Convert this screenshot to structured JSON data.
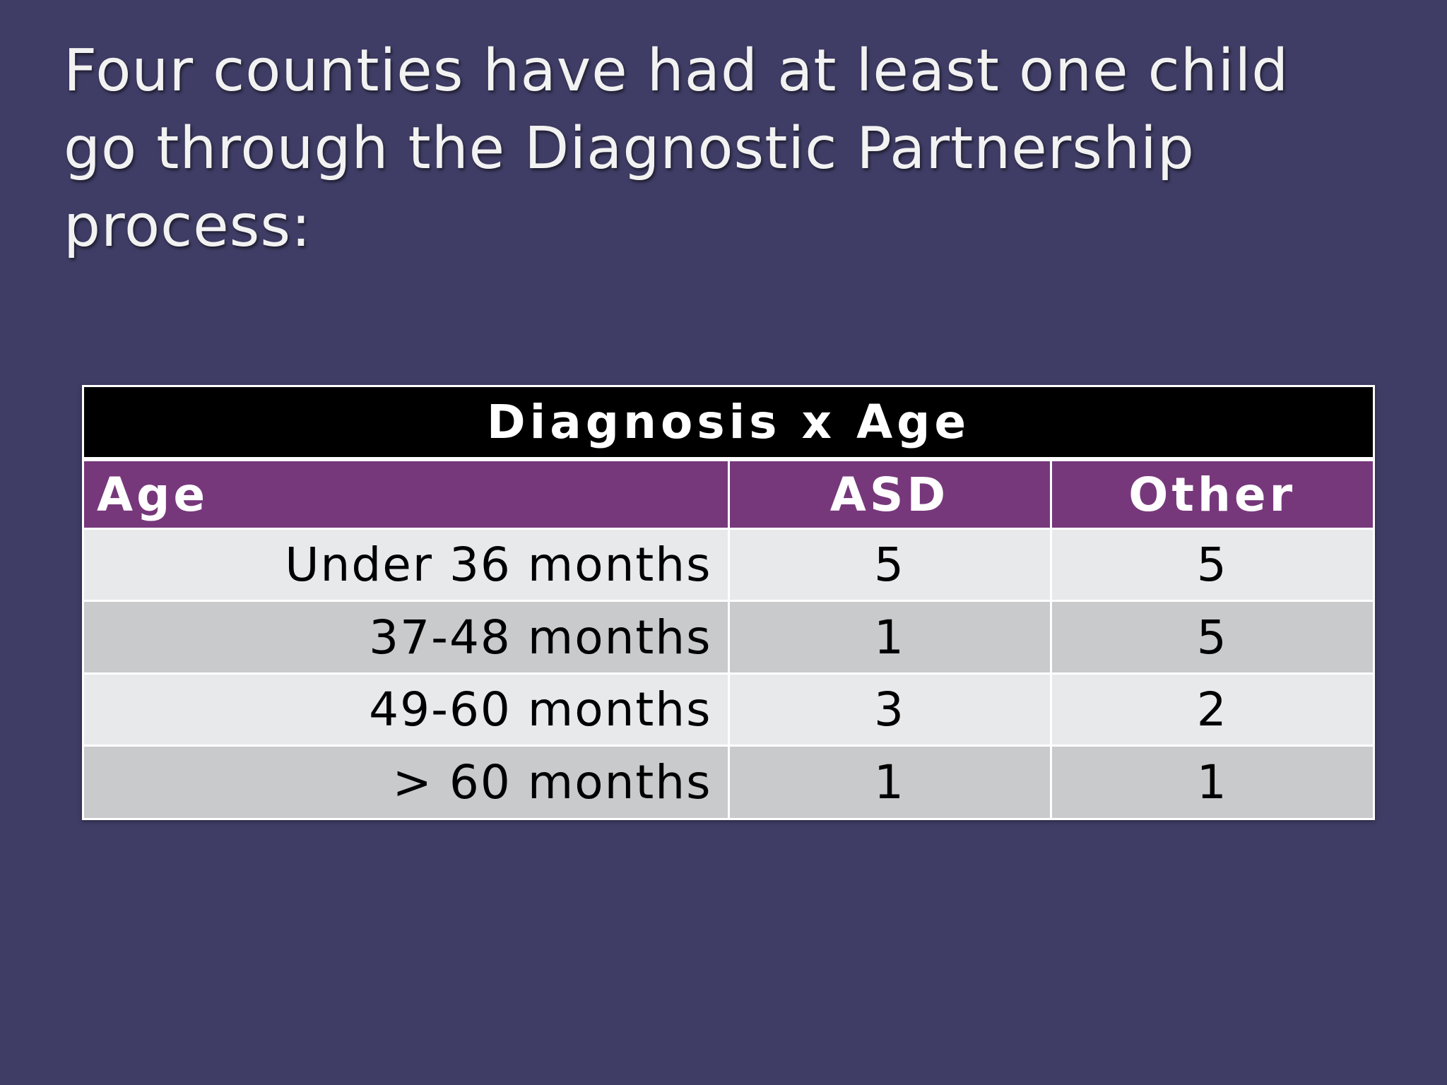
{
  "slide": {
    "title": "Four counties have had at least one child go through the Diagnostic Partnership process:"
  },
  "table": {
    "caption": "Diagnosis x Age",
    "headers": {
      "age": "Age",
      "asd": "ASD",
      "other": "Other"
    },
    "rows": [
      {
        "age": "Under 36 months",
        "asd": "5",
        "other": "5"
      },
      {
        "age": "37-48 months",
        "asd": "1",
        "other": "5"
      },
      {
        "age": "49-60 months",
        "asd": "3",
        "other": "2"
      },
      {
        "age": "> 60 months",
        "asd": "1",
        "other": "1"
      }
    ]
  },
  "colors": {
    "background": "#3f3d65",
    "caption_bg": "#000000",
    "header_bg": "#77387b",
    "row_light": "#e8e9eb",
    "row_dark": "#c9cacc"
  }
}
